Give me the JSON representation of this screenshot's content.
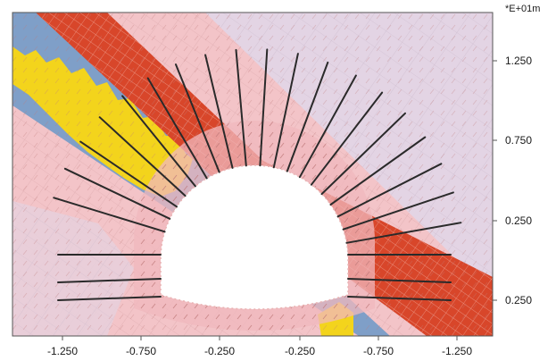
{
  "figure": {
    "unit_label": "*E+01m",
    "x_ticks": [
      "-1.250",
      "-0.750",
      "-0.250",
      "-0.250",
      "-0.750",
      "-1.250"
    ],
    "y_ticks": [
      "1.250",
      "0.750",
      "0.250",
      "0.250"
    ]
  },
  "colors": {
    "background": "#e3d4e4",
    "pink": "#f3c4c8",
    "red_band": "#d8462a",
    "blue_band": "#7f9fc8",
    "yellow_band": "#f3d41c",
    "opening": "#ffffff",
    "bolt": "#2a2a2a"
  }
}
